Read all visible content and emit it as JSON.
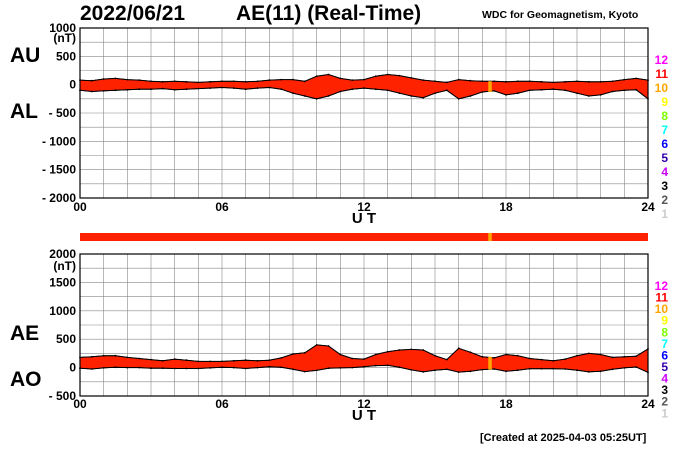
{
  "header": {
    "date": "2022/06/21",
    "title": "AE(11) (Real-Time)",
    "source": "WDC for Geomagnetism, Kyoto"
  },
  "footer": {
    "created": "[Created at 2025-04-03 05:25UT]"
  },
  "colors": {
    "fill": "#ff2200",
    "highlight": "#ffa500",
    "outline": "#000000",
    "grid": "#888888"
  },
  "station_count_scale": {
    "labels": [
      "12",
      "11",
      "10",
      "9",
      "8",
      "7",
      "6",
      "5",
      "4",
      "3",
      "2",
      "1"
    ],
    "colors": [
      "#ff00ff",
      "#ff0000",
      "#ffa500",
      "#ffff00",
      "#7fff00",
      "#00ffff",
      "#0000ff",
      "#3300aa",
      "#cc00ff",
      "#000000",
      "#555555",
      "#cccccc"
    ]
  },
  "chart_data": [
    {
      "type": "area",
      "name": "AU/AL panel",
      "left_labels": [
        "AU",
        "AL"
      ],
      "unit_label": "(nT)",
      "xlabel": "U T",
      "x_ticks": [
        0,
        6,
        12,
        18,
        24
      ],
      "x_tick_labels": [
        "00",
        "06",
        "12",
        "18",
        "24"
      ],
      "xlim": [
        0,
        24
      ],
      "ylim": [
        -2000,
        1000
      ],
      "y_ticks": [
        1000,
        500,
        0,
        -500,
        -1000,
        -1500,
        -2000
      ],
      "y_tick_labels": [
        "1000",
        "500",
        "0",
        "- 500",
        "- 1000",
        "- 1500",
        "- 2000"
      ],
      "grid": true,
      "x": [
        0,
        0.5,
        1,
        1.5,
        2,
        2.5,
        3,
        3.5,
        4,
        4.5,
        5,
        5.5,
        6,
        6.5,
        7,
        7.5,
        8,
        8.5,
        9,
        9.5,
        10,
        10.5,
        11,
        11.5,
        12,
        12.5,
        13,
        13.5,
        14,
        14.5,
        15,
        15.5,
        16,
        16.5,
        17,
        17.5,
        18,
        18.5,
        19,
        19.5,
        20,
        20.5,
        21,
        21.5,
        22,
        22.5,
        23,
        23.5,
        24
      ],
      "series": [
        {
          "name": "AU",
          "values": [
            80,
            70,
            100,
            110,
            90,
            80,
            60,
            50,
            60,
            50,
            40,
            50,
            60,
            60,
            50,
            60,
            80,
            90,
            90,
            60,
            150,
            180,
            110,
            80,
            90,
            150,
            180,
            160,
            120,
            80,
            60,
            40,
            90,
            70,
            60,
            60,
            50,
            60,
            60,
            50,
            40,
            50,
            60,
            50,
            50,
            60,
            90,
            110,
            80
          ]
        },
        {
          "name": "AL",
          "values": [
            -100,
            -120,
            -110,
            -100,
            -90,
            -80,
            -80,
            -70,
            -90,
            -80,
            -70,
            -60,
            -50,
            -60,
            -80,
            -60,
            -50,
            -80,
            -150,
            -200,
            -250,
            -200,
            -120,
            -80,
            -60,
            -80,
            -100,
            -150,
            -200,
            -230,
            -150,
            -100,
            -250,
            -200,
            -130,
            -110,
            -180,
            -150,
            -100,
            -90,
            -80,
            -100,
            -150,
            -200,
            -180,
            -120,
            -100,
            -90,
            -250
          ]
        }
      ],
      "highlight_interval": [
        17.25,
        17.4
      ]
    },
    {
      "type": "area",
      "name": "AE/AO panel",
      "left_labels": [
        "AE",
        "AO"
      ],
      "unit_label": "(nT)",
      "xlabel": "U T",
      "x_ticks": [
        0,
        6,
        12,
        18,
        24
      ],
      "x_tick_labels": [
        "00",
        "06",
        "12",
        "18",
        "24"
      ],
      "xlim": [
        0,
        24
      ],
      "ylim": [
        -500,
        2000
      ],
      "y_ticks": [
        2000,
        1500,
        1000,
        500,
        0,
        -500
      ],
      "y_tick_labels": [
        "2000",
        "1500",
        "1000",
        "500",
        "0",
        "- 500"
      ],
      "grid": true,
      "x": [
        0,
        0.5,
        1,
        1.5,
        2,
        2.5,
        3,
        3.5,
        4,
        4.5,
        5,
        5.5,
        6,
        6.5,
        7,
        7.5,
        8,
        8.5,
        9,
        9.5,
        10,
        10.5,
        11,
        11.5,
        12,
        12.5,
        13,
        13.5,
        14,
        14.5,
        15,
        15.5,
        16,
        16.5,
        17,
        17.5,
        18,
        18.5,
        19,
        19.5,
        20,
        20.5,
        21,
        21.5,
        22,
        22.5,
        23,
        23.5,
        24
      ],
      "series": [
        {
          "name": "AE",
          "values": [
            180,
            190,
            210,
            210,
            180,
            160,
            140,
            120,
            150,
            130,
            110,
            110,
            110,
            120,
            130,
            120,
            130,
            170,
            240,
            260,
            400,
            380,
            230,
            160,
            150,
            230,
            280,
            310,
            320,
            310,
            210,
            140,
            340,
            270,
            190,
            170,
            230,
            210,
            160,
            140,
            120,
            150,
            210,
            250,
            230,
            180,
            190,
            200,
            330
          ]
        },
        {
          "name": "AO",
          "values": [
            -10,
            -25,
            -5,
            5,
            0,
            0,
            -10,
            -10,
            -15,
            -15,
            -15,
            -5,
            5,
            0,
            -15,
            0,
            15,
            5,
            -30,
            -70,
            -50,
            -10,
            -5,
            0,
            15,
            35,
            40,
            5,
            -40,
            -75,
            -45,
            -30,
            -80,
            -65,
            -35,
            -25,
            -65,
            -45,
            -20,
            -20,
            -20,
            -25,
            -45,
            -75,
            -65,
            -30,
            -5,
            10,
            -85
          ]
        }
      ],
      "highlight_interval": [
        17.25,
        17.4
      ]
    }
  ]
}
